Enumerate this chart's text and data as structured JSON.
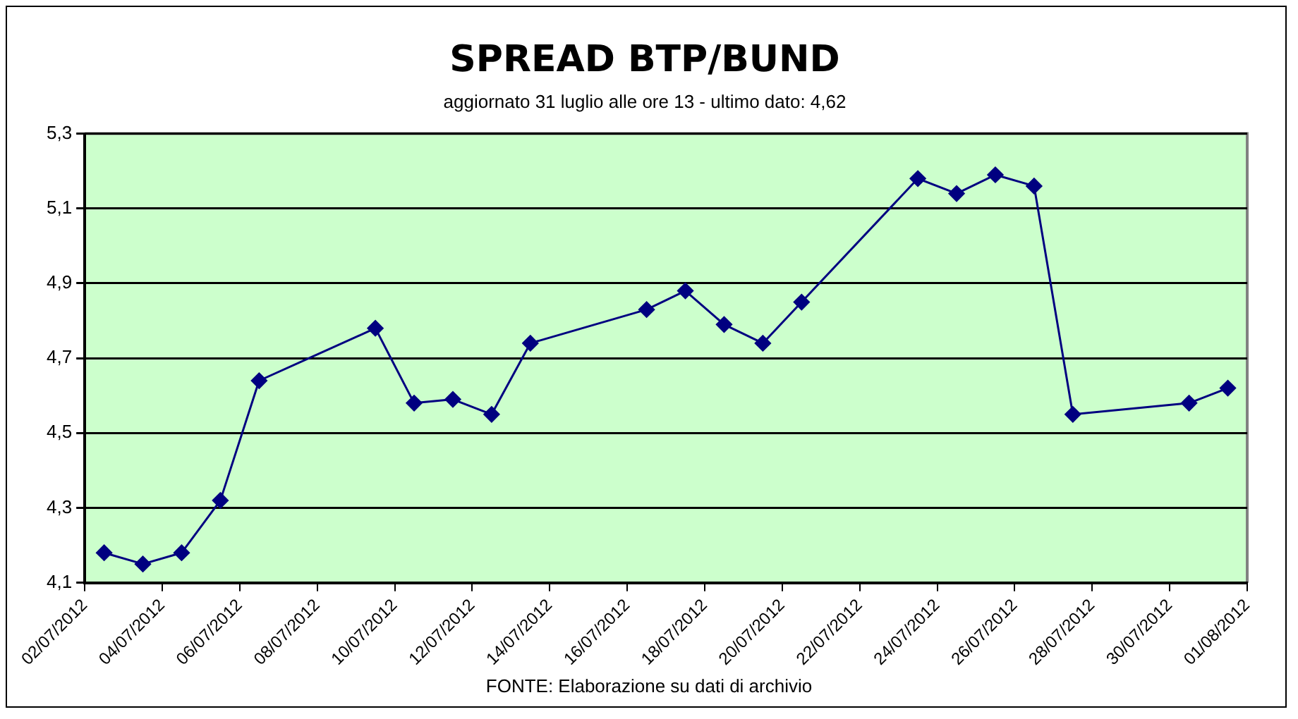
{
  "chart_data": {
    "type": "line",
    "title": "SPREAD BTP/BUND",
    "subtitle": "aggiornato 31 luglio alle ore 13 - ultimo dato: 4,62",
    "annotations": [
      "FONTE: Elaborazione su dati di archivio"
    ],
    "x": [
      "2012-07-02T12:00",
      "2012-07-03T12:00",
      "2012-07-04T12:00",
      "2012-07-05T12:00",
      "2012-07-06T12:00",
      "2012-07-09T12:00",
      "2012-07-10T12:00",
      "2012-07-11T12:00",
      "2012-07-12T12:00",
      "2012-07-13T12:00",
      "2012-07-16T12:00",
      "2012-07-17T12:00",
      "2012-07-18T12:00",
      "2012-07-19T12:00",
      "2012-07-20T12:00",
      "2012-07-23T12:00",
      "2012-07-24T12:00",
      "2012-07-25T12:00",
      "2012-07-26T12:00",
      "2012-07-27T12:00",
      "2012-07-30T12:00",
      "2012-07-31T12:00"
    ],
    "series": [
      {
        "color": "#000080",
        "values": [
          4.18,
          4.15,
          4.18,
          4.32,
          4.64,
          4.78,
          4.58,
          4.59,
          4.55,
          4.74,
          4.83,
          4.88,
          4.79,
          4.74,
          4.85,
          5.18,
          5.14,
          5.19,
          5.16,
          4.55,
          4.58,
          4.62
        ]
      }
    ],
    "xlim": [
      "2012-07-02",
      "2012-08-01"
    ],
    "xticks": [
      {
        "value": "2012-07-02",
        "label": "02/07/2012"
      },
      {
        "value": "2012-07-04",
        "label": "04/07/2012"
      },
      {
        "value": "2012-07-06",
        "label": "06/07/2012"
      },
      {
        "value": "2012-07-08",
        "label": "08/07/2012"
      },
      {
        "value": "2012-07-10",
        "label": "10/07/2012"
      },
      {
        "value": "2012-07-12",
        "label": "12/07/2012"
      },
      {
        "value": "2012-07-14",
        "label": "14/07/2012"
      },
      {
        "value": "2012-07-16",
        "label": "16/07/2012"
      },
      {
        "value": "2012-07-18",
        "label": "18/07/2012"
      },
      {
        "value": "2012-07-20",
        "label": "20/07/2012"
      },
      {
        "value": "2012-07-22",
        "label": "22/07/2012"
      },
      {
        "value": "2012-07-24",
        "label": "24/07/2012"
      },
      {
        "value": "2012-07-26",
        "label": "26/07/2012"
      },
      {
        "value": "2012-07-28",
        "label": "28/07/2012"
      },
      {
        "value": "2012-07-30",
        "label": "30/07/2012"
      },
      {
        "value": "2012-08-01",
        "label": "01/08/2012"
      }
    ],
    "ylim": [
      4.1,
      5.3
    ],
    "yticks": [
      {
        "value": 4.1,
        "label": "4,1"
      },
      {
        "value": 4.3,
        "label": "4,3"
      },
      {
        "value": 4.5,
        "label": "4,5"
      },
      {
        "value": 4.7,
        "label": "4,7"
      },
      {
        "value": 4.9,
        "label": "4,9"
      },
      {
        "value": 5.1,
        "label": "5,1"
      },
      {
        "value": 5.3,
        "label": "5,3"
      }
    ],
    "grid": "y",
    "marker": "diamond",
    "line_style": "solid"
  }
}
